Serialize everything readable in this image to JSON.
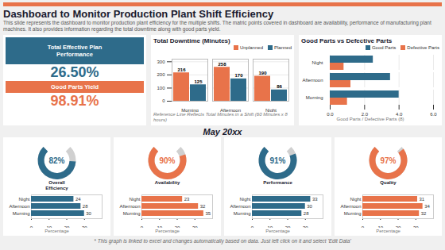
{
  "chart_data": [
    {
      "type": "kpi",
      "title": "Dashboard to Monitor Production Plant Shift Efficiency",
      "subtitle": "This slide represents the dashboard to monitor production plant efficiency for the multiple shifts. The matric points covered in dashboard are availability, performance of manufacturing plant machines. It also provides information regarding the total downtime along with good parts yield.",
      "categories": [
        "Total Effective Plan\nPerformance",
        "Good Parts Yield"
      ],
      "values": [
        26.5,
        98.91
      ],
      "value_labels": [
        "26.50%",
        "98.91%"
      ],
      "colors": [
        "#2e6b8a",
        "#e8734a"
      ]
    },
    {
      "type": "bar",
      "title": "Total Downtime (Minutes)",
      "categories": [
        "Morning",
        "Afternoon",
        "Night"
      ],
      "series": [
        {
          "name": "Unplanned",
          "color": "#e8734a",
          "values": [
            216,
            258,
            190
          ]
        },
        {
          "name": "Planned",
          "color": "#2e6b8a",
          "values": [
            125,
            170,
            86
          ]
        }
      ],
      "ylim": [
        0,
        320
      ],
      "yticks": [
        0,
        100,
        200,
        300
      ],
      "grid": true,
      "legend": "upper right",
      "data_labels": true,
      "annotations": [
        "Reference Line Reflects Total Minutes in a Shift (60 Minutes x 8 hours)"
      ]
    },
    {
      "type": "bar",
      "orientation": "horizontal",
      "title": "Good Parts vs Defective Parts",
      "categories": [
        "Morning",
        "Afternoon",
        "Night"
      ],
      "series": [
        {
          "name": "Good Parts",
          "color": "#2e6b8a",
          "values": [
            4,
            3.5,
            2.5
          ]
        },
        {
          "name": "Defective Parts",
          "color": "#e8734a",
          "values": [
            1,
            1.2,
            0.8
          ]
        }
      ],
      "xlim": [
        0,
        6
      ],
      "xticks": [
        0,
        2,
        4,
        6
      ],
      "grid": true,
      "legend": "upper right",
      "annotations": [
        "Good Parts / Defective Parts (8)"
      ]
    },
    {
      "type": "gauge",
      "title": "May 20xx",
      "categories": [
        "Overall\nEfficiency",
        "Availability",
        "Performance",
        "Quality"
      ],
      "values": [
        82,
        90,
        91,
        97
      ],
      "value_labels": [
        "82%",
        "90%",
        "91%",
        "97%"
      ],
      "colors": [
        "#2e6b8a",
        "#e8734a",
        "#2e6b8a",
        "#e8734a"
      ],
      "ylim": [
        0,
        100
      ]
    },
    {
      "type": "bar",
      "orientation": "horizontal",
      "categories": [
        "Morning",
        "Afternoon",
        "Night"
      ],
      "series": [
        {
          "name": "Overall\nEfficiency",
          "color": "#2e6b8a",
          "values": [
            30,
            28,
            24
          ]
        },
        {
          "name": "Availability",
          "color": "#e8734a",
          "values": [
            35,
            32,
            23
          ]
        },
        {
          "name": "Performance",
          "color": "#2e6b8a",
          "values": [
            28,
            30,
            33
          ]
        },
        {
          "name": "Quality",
          "color": "#e8734a",
          "values": [
            32,
            34,
            31
          ]
        }
      ],
      "xlim": [
        0,
        40
      ],
      "xticks": [
        0,
        10,
        20,
        30
      ],
      "xlabel": "Percentage",
      "data_labels": true,
      "annotations": [
        "* This graph is linked to excel and changes automatically based on data. Just left click on it and select 'Edit Data'"
      ]
    }
  ]
}
